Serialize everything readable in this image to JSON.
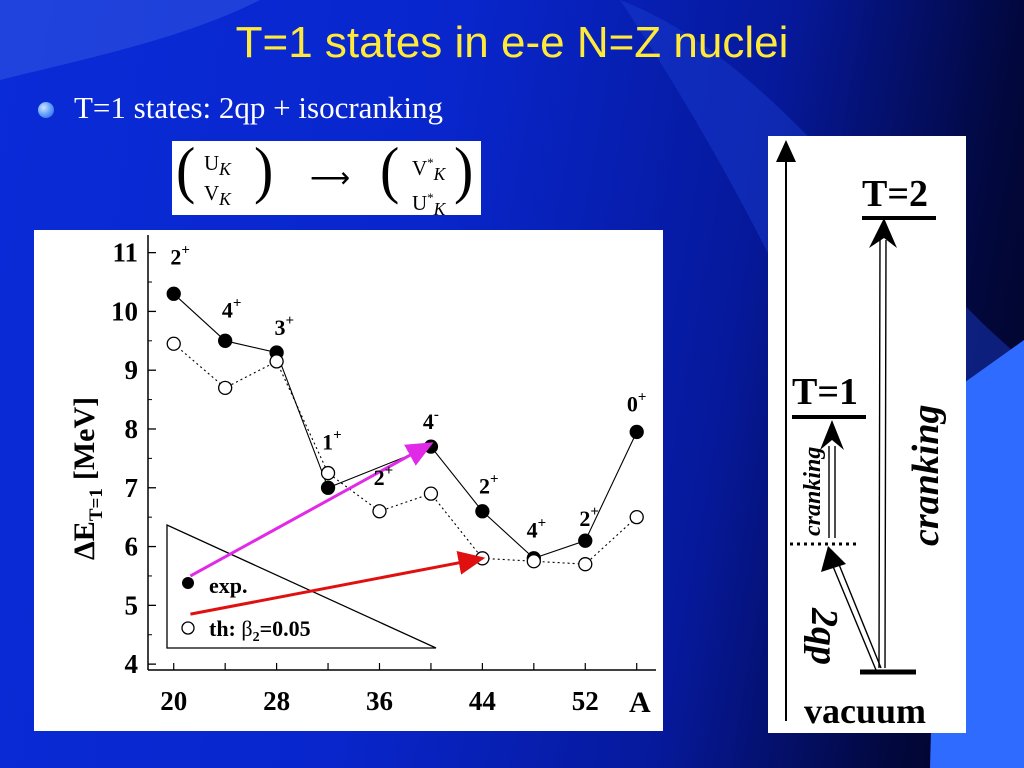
{
  "title": "T=1 states in e-e N=Z nuclei",
  "bullet": "T=1 states: 2qp + isocranking",
  "matrix": {
    "left_top": "U",
    "left_top_sub": "K",
    "left_bottom": "V",
    "left_bottom_sub": "K",
    "arrow": "⟶",
    "right_top": "V",
    "right_top_sup": "*",
    "right_top_sub": "K",
    "right_bottom": "U",
    "right_bottom_sup": "*",
    "right_bottom_sub": "K"
  },
  "chart_data": {
    "type": "line",
    "x": [
      20,
      24,
      28,
      32,
      36,
      40,
      44,
      48,
      52,
      56
    ],
    "xticks": [
      "20",
      "28",
      "36",
      "44",
      "52"
    ],
    "xtick_values": [
      20,
      28,
      36,
      44,
      52
    ],
    "yticks": [
      "4",
      "5",
      "6",
      "7",
      "8",
      "9",
      "10",
      "11"
    ],
    "xlabel": "A",
    "ylabel_main": "ΔE",
    "ylabel_sub": "T=1",
    "ylabel_unit": "[MeV]",
    "xlim": [
      18,
      57.5
    ],
    "ylim": [
      3.9,
      11.3
    ],
    "series": [
      {
        "name": "exp.",
        "values": [
          10.3,
          9.5,
          9.3,
          7.0,
          null,
          7.7,
          6.6,
          5.8,
          6.1,
          7.95
        ],
        "style": "filled"
      },
      {
        "name": "th: β₂=0.05",
        "values": [
          9.45,
          8.7,
          9.15,
          7.25,
          6.6,
          6.9,
          5.8,
          5.75,
          5.7,
          6.5
        ],
        "style": "open"
      }
    ],
    "annotations": [
      {
        "text": "2",
        "sup": "+",
        "x": 20.5,
        "y": 10.8
      },
      {
        "text": "4",
        "sup": "+",
        "x": 24.5,
        "y": 9.9
      },
      {
        "text": "3",
        "sup": "+",
        "x": 28.6,
        "y": 9.6
      },
      {
        "text": "1",
        "sup": "+",
        "x": 32.3,
        "y": 7.65
      },
      {
        "text": "2",
        "sup": "+",
        "x": 36.3,
        "y": 7.05
      },
      {
        "text": "4",
        "sup": "-",
        "x": 40.0,
        "y": 8.0
      },
      {
        "text": "2",
        "sup": "+",
        "x": 44.5,
        "y": 6.9
      },
      {
        "text": "4",
        "sup": "+",
        "x": 48.2,
        "y": 6.15
      },
      {
        "text": "2",
        "sup": "+",
        "x": 52.3,
        "y": 6.35
      },
      {
        "text": "0",
        "sup": "+",
        "x": 56.0,
        "y": 8.3
      }
    ],
    "arrows": [
      {
        "color": "#e02ae8",
        "from": [
          21.3,
          5.5
        ],
        "to": [
          40.0,
          7.75
        ]
      },
      {
        "color": "#e01010",
        "from": [
          21.3,
          4.85
        ],
        "to": [
          44.0,
          5.8
        ]
      }
    ],
    "legend": {
      "exp": "exp.",
      "th_prefix": "th: ",
      "th_beta": "β",
      "th_sub": "2",
      "th_value": "=0.05",
      "placement": "bottom-left"
    }
  },
  "diagram": {
    "t2": "T=2",
    "t1": "T=1",
    "vacuum": "vacuum",
    "cranking_big": "cranking",
    "cranking_small": "cranking",
    "two_qp": "2qp",
    "accent_color": "#2f6bff"
  }
}
